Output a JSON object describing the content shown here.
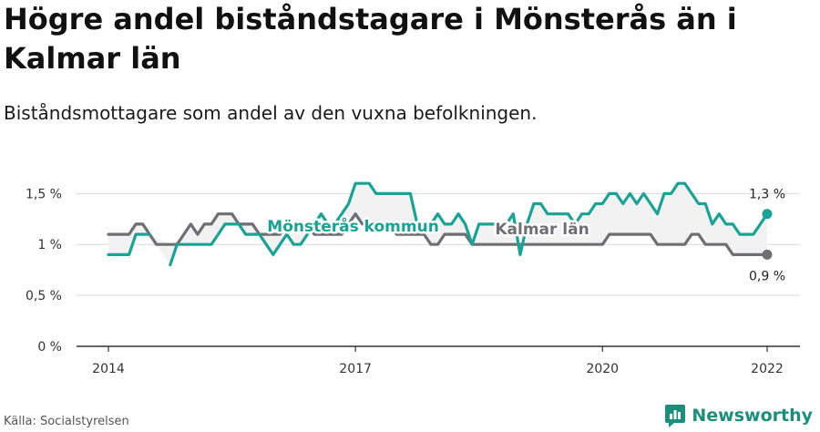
{
  "title": "Högre andel biståndstagare i Mönsterås än i Kalmar län",
  "subtitle": "Biståndsmottagare som andel av den vuxna befolkningen.",
  "source": "Källa: Socialstyrelsen",
  "brand": "Newsworthy",
  "colors": {
    "teal": "#19a394",
    "gray": "#6e6e73",
    "band": "#f2f2f2",
    "grid": "#d9d9d9"
  },
  "chart_data": {
    "type": "line",
    "x_range": [
      "2014-01",
      "2022-01"
    ],
    "x_ticks": [
      {
        "date": "2014-01",
        "label": "2014"
      },
      {
        "date": "2017-01",
        "label": "2017"
      },
      {
        "date": "2020-01",
        "label": "2020"
      },
      {
        "date": "2022-01",
        "label": "2022"
      }
    ],
    "y_ticks": [
      {
        "value": 0,
        "label": "0 %"
      },
      {
        "value": 0.5,
        "label": "0,5 %"
      },
      {
        "value": 1,
        "label": "1 %"
      },
      {
        "value": 1.5,
        "label": "1,5 %"
      }
    ],
    "ylim": [
      0,
      1.7
    ],
    "grid": true,
    "series": [
      {
        "name": "Mönsterås kommun",
        "color": "#19a394",
        "end_label": "1,3 %",
        "points": [
          [
            "2014-01",
            0.9
          ],
          [
            "2014-02",
            0.9
          ],
          [
            "2014-03",
            0.9
          ],
          [
            "2014-04",
            0.9
          ],
          [
            "2014-05",
            1.1
          ],
          [
            "2014-06",
            1.1
          ],
          [
            "2014-07",
            1.1
          ],
          [
            "2014-08",
            null
          ],
          [
            "2014-09",
            null
          ],
          [
            "2014-10",
            0.8
          ],
          [
            "2014-11",
            1.0
          ],
          [
            "2014-12",
            1.0
          ],
          [
            "2015-01",
            1.0
          ],
          [
            "2015-02",
            1.0
          ],
          [
            "2015-03",
            1.0
          ],
          [
            "2015-04",
            1.0
          ],
          [
            "2015-05",
            1.1
          ],
          [
            "2015-06",
            1.2
          ],
          [
            "2015-07",
            1.2
          ],
          [
            "2015-08",
            1.2
          ],
          [
            "2015-09",
            1.1
          ],
          [
            "2015-10",
            1.1
          ],
          [
            "2015-11",
            1.1
          ],
          [
            "2015-12",
            1.0
          ],
          [
            "2016-01",
            0.9
          ],
          [
            "2016-02",
            1.0
          ],
          [
            "2016-03",
            1.1
          ],
          [
            "2016-04",
            1.0
          ],
          [
            "2016-05",
            1.0
          ],
          [
            "2016-06",
            1.1
          ],
          [
            "2016-07",
            1.2
          ],
          [
            "2016-08",
            1.3
          ],
          [
            "2016-09",
            1.2
          ],
          [
            "2016-10",
            1.2
          ],
          [
            "2016-11",
            1.3
          ],
          [
            "2016-12",
            1.4
          ],
          [
            "2017-01",
            1.6
          ],
          [
            "2017-02",
            1.6
          ],
          [
            "2017-03",
            1.6
          ],
          [
            "2017-04",
            1.5
          ],
          [
            "2017-05",
            1.5
          ],
          [
            "2017-06",
            1.5
          ],
          [
            "2017-07",
            1.5
          ],
          [
            "2017-08",
            1.5
          ],
          [
            "2017-09",
            1.5
          ],
          [
            "2017-10",
            1.2
          ],
          [
            "2017-11",
            1.2
          ],
          [
            "2017-12",
            1.2
          ],
          [
            "2018-01",
            1.3
          ],
          [
            "2018-02",
            1.2
          ],
          [
            "2018-03",
            1.2
          ],
          [
            "2018-04",
            1.3
          ],
          [
            "2018-05",
            1.2
          ],
          [
            "2018-06",
            1.0
          ],
          [
            "2018-07",
            1.2
          ],
          [
            "2018-08",
            1.2
          ],
          [
            "2018-09",
            1.2
          ],
          [
            "2018-10",
            1.2
          ],
          [
            "2018-11",
            1.2
          ],
          [
            "2018-12",
            1.3
          ],
          [
            "2019-01",
            0.9
          ],
          [
            "2019-02",
            1.2
          ],
          [
            "2019-03",
            1.4
          ],
          [
            "2019-04",
            1.4
          ],
          [
            "2019-05",
            1.3
          ],
          [
            "2019-06",
            1.3
          ],
          [
            "2019-07",
            1.3
          ],
          [
            "2019-08",
            1.3
          ],
          [
            "2019-09",
            1.2
          ],
          [
            "2019-10",
            1.3
          ],
          [
            "2019-11",
            1.3
          ],
          [
            "2019-12",
            1.4
          ],
          [
            "2020-01",
            1.4
          ],
          [
            "2020-02",
            1.5
          ],
          [
            "2020-03",
            1.5
          ],
          [
            "2020-04",
            1.4
          ],
          [
            "2020-05",
            1.5
          ],
          [
            "2020-06",
            1.4
          ],
          [
            "2020-07",
            1.5
          ],
          [
            "2020-08",
            1.4
          ],
          [
            "2020-09",
            1.3
          ],
          [
            "2020-10",
            1.5
          ],
          [
            "2020-11",
            1.5
          ],
          [
            "2020-12",
            1.6
          ],
          [
            "2021-01",
            1.6
          ],
          [
            "2021-02",
            1.5
          ],
          [
            "2021-03",
            1.4
          ],
          [
            "2021-04",
            1.4
          ],
          [
            "2021-05",
            1.2
          ],
          [
            "2021-06",
            1.3
          ],
          [
            "2021-07",
            1.2
          ],
          [
            "2021-08",
            1.2
          ],
          [
            "2021-09",
            1.1
          ],
          [
            "2021-10",
            1.1
          ],
          [
            "2021-11",
            1.1
          ],
          [
            "2021-12",
            1.2
          ],
          [
            "2022-01",
            1.3
          ]
        ]
      },
      {
        "name": "Kalmar län",
        "color": "#6e6e73",
        "end_label": "0,9 %",
        "points": [
          [
            "2014-01",
            1.1
          ],
          [
            "2014-02",
            1.1
          ],
          [
            "2014-03",
            1.1
          ],
          [
            "2014-04",
            1.1
          ],
          [
            "2014-05",
            1.2
          ],
          [
            "2014-06",
            1.2
          ],
          [
            "2014-07",
            1.1
          ],
          [
            "2014-08",
            1.0
          ],
          [
            "2014-09",
            1.0
          ],
          [
            "2014-10",
            1.0
          ],
          [
            "2014-11",
            1.0
          ],
          [
            "2014-12",
            1.1
          ],
          [
            "2015-01",
            1.2
          ],
          [
            "2015-02",
            1.1
          ],
          [
            "2015-03",
            1.2
          ],
          [
            "2015-04",
            1.2
          ],
          [
            "2015-05",
            1.3
          ],
          [
            "2015-06",
            1.3
          ],
          [
            "2015-07",
            1.3
          ],
          [
            "2015-08",
            1.2
          ],
          [
            "2015-09",
            1.2
          ],
          [
            "2015-10",
            1.2
          ],
          [
            "2015-11",
            1.1
          ],
          [
            "2015-12",
            1.1
          ],
          [
            "2016-01",
            1.1
          ],
          [
            "2016-02",
            1.1
          ],
          [
            "2016-03",
            1.2
          ],
          [
            "2016-04",
            1.2
          ],
          [
            "2016-05",
            1.2
          ],
          [
            "2016-06",
            1.2
          ],
          [
            "2016-07",
            1.1
          ],
          [
            "2016-08",
            1.1
          ],
          [
            "2016-09",
            1.1
          ],
          [
            "2016-10",
            1.1
          ],
          [
            "2016-11",
            1.1
          ],
          [
            "2016-12",
            1.2
          ],
          [
            "2017-01",
            1.3
          ],
          [
            "2017-02",
            1.2
          ],
          [
            "2017-03",
            1.2
          ],
          [
            "2017-04",
            1.2
          ],
          [
            "2017-05",
            1.2
          ],
          [
            "2017-06",
            1.2
          ],
          [
            "2017-07",
            1.1
          ],
          [
            "2017-08",
            1.1
          ],
          [
            "2017-09",
            1.1
          ],
          [
            "2017-10",
            1.1
          ],
          [
            "2017-11",
            1.1
          ],
          [
            "2017-12",
            1.0
          ],
          [
            "2018-01",
            1.0
          ],
          [
            "2018-02",
            1.1
          ],
          [
            "2018-03",
            1.1
          ],
          [
            "2018-04",
            1.1
          ],
          [
            "2018-05",
            1.1
          ],
          [
            "2018-06",
            1.0
          ],
          [
            "2018-07",
            1.0
          ],
          [
            "2018-08",
            1.0
          ],
          [
            "2018-09",
            1.0
          ],
          [
            "2018-10",
            1.0
          ],
          [
            "2018-11",
            1.0
          ],
          [
            "2018-12",
            1.0
          ],
          [
            "2019-01",
            1.0
          ],
          [
            "2019-02",
            1.0
          ],
          [
            "2019-03",
            1.0
          ],
          [
            "2019-04",
            1.0
          ],
          [
            "2019-05",
            1.0
          ],
          [
            "2019-06",
            1.0
          ],
          [
            "2019-07",
            1.0
          ],
          [
            "2019-08",
            1.0
          ],
          [
            "2019-09",
            1.0
          ],
          [
            "2019-10",
            1.0
          ],
          [
            "2019-11",
            1.0
          ],
          [
            "2019-12",
            1.0
          ],
          [
            "2020-01",
            1.0
          ],
          [
            "2020-02",
            1.1
          ],
          [
            "2020-03",
            1.1
          ],
          [
            "2020-04",
            1.1
          ],
          [
            "2020-05",
            1.1
          ],
          [
            "2020-06",
            1.1
          ],
          [
            "2020-07",
            1.1
          ],
          [
            "2020-08",
            1.1
          ],
          [
            "2020-09",
            1.0
          ],
          [
            "2020-10",
            1.0
          ],
          [
            "2020-11",
            1.0
          ],
          [
            "2020-12",
            1.0
          ],
          [
            "2021-01",
            1.0
          ],
          [
            "2021-02",
            1.1
          ],
          [
            "2021-03",
            1.1
          ],
          [
            "2021-04",
            1.0
          ],
          [
            "2021-05",
            1.0
          ],
          [
            "2021-06",
            1.0
          ],
          [
            "2021-07",
            1.0
          ],
          [
            "2021-08",
            0.9
          ],
          [
            "2021-09",
            0.9
          ],
          [
            "2021-10",
            0.9
          ],
          [
            "2021-11",
            0.9
          ],
          [
            "2021-12",
            0.9
          ],
          [
            "2022-01",
            0.9
          ]
        ]
      }
    ]
  }
}
